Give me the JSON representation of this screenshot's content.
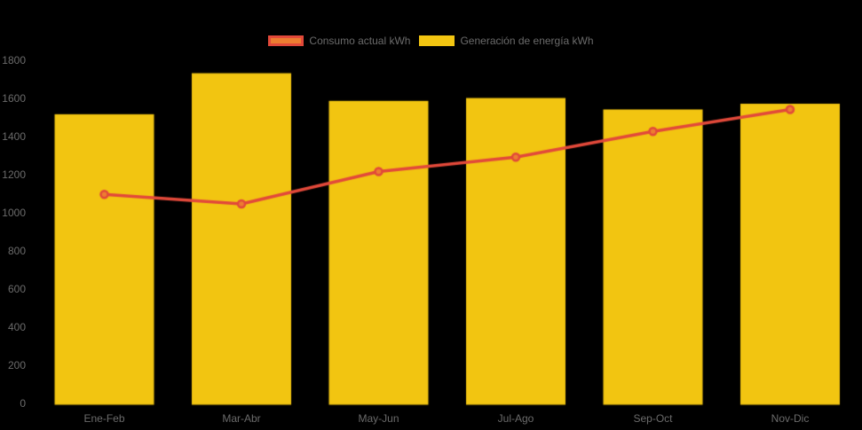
{
  "chart_data": {
    "type": "mixed",
    "title": "",
    "xlabel": "",
    "ylabel": "",
    "categories": [
      "Ene-Feb",
      "Mar-Abr",
      "May-Jun",
      "Jul-Ago",
      "Sep-Oct",
      "Nov-Dic"
    ],
    "series": [
      {
        "name": "Consumo actual kWh",
        "type": "line",
        "values": [
          1095,
          1045,
          1215,
          1290,
          1425,
          1540
        ],
        "color": "#e2493a",
        "point_fill": "#ed7d31",
        "line_width": 3.5
      },
      {
        "name": "Generación de energía kWh",
        "type": "bar",
        "values": [
          1515,
          1730,
          1585,
          1600,
          1540,
          1570
        ],
        "color": "#f2c511"
      }
    ],
    "ylim": [
      0,
      1800
    ],
    "ytick_step": 200,
    "yticks": [
      0,
      200,
      400,
      600,
      800,
      1000,
      1200,
      1400,
      1600,
      1800
    ],
    "legend_position": "top-center",
    "grid": false,
    "background": "#000000",
    "text_color": "#6b6b6b"
  }
}
